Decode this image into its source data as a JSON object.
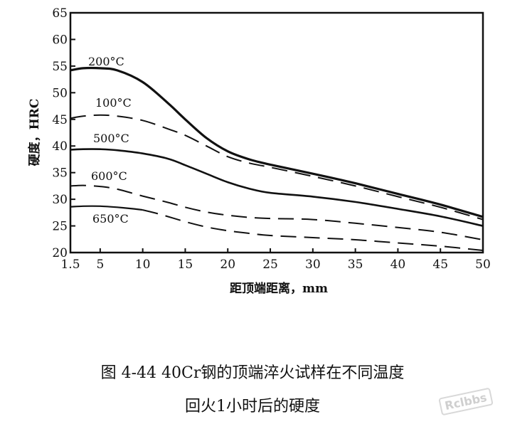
{
  "chart_data": {
    "type": "line",
    "xlabel": "距顶端距离，mm",
    "ylabel": "硬度，HRC",
    "xlim": [
      1.5,
      50
    ],
    "ylim": [
      20,
      65
    ],
    "xticks": [
      "1.5",
      "5",
      "10",
      "15",
      "20",
      "25",
      "30",
      "35",
      "40",
      "45",
      "50"
    ],
    "xtick_values": [
      1.5,
      5,
      10,
      15,
      20,
      25,
      30,
      35,
      40,
      45,
      50
    ],
    "yticks": [
      20,
      25,
      30,
      35,
      40,
      45,
      50,
      55,
      60,
      65
    ],
    "series": [
      {
        "name": "200°C",
        "style": "solid",
        "x": [
          1.5,
          3,
          5,
          7,
          10,
          13,
          15,
          17.5,
          20,
          22.5,
          25,
          30,
          35,
          40,
          45,
          50
        ],
        "y": [
          54.2,
          54.6,
          54.6,
          54.2,
          52,
          48,
          45,
          41.5,
          39,
          37.5,
          36.5,
          34.8,
          33,
          31,
          29,
          26.7
        ]
      },
      {
        "name": "100°C",
        "style": "dashed",
        "x": [
          1.5,
          3,
          5,
          7,
          10,
          13,
          15,
          17.5,
          20,
          22.5,
          25,
          30,
          35,
          40,
          45,
          50
        ],
        "y": [
          45.2,
          45.6,
          45.8,
          45.6,
          44.8,
          43.2,
          42,
          40,
          38,
          36.8,
          36,
          34.3,
          32.5,
          30.5,
          28.5,
          26.2
        ]
      },
      {
        "name": "500°C",
        "style": "solid",
        "x": [
          1.5,
          3,
          5,
          7,
          10,
          13,
          15,
          17.5,
          20,
          22.5,
          25,
          30,
          35,
          40,
          45,
          50
        ],
        "y": [
          39.3,
          39.4,
          39.4,
          39.2,
          38.6,
          37.6,
          36.4,
          34.8,
          33.2,
          32,
          31.2,
          30.5,
          29.5,
          28.2,
          26.8,
          25
        ]
      },
      {
        "name": "600°C",
        "style": "dashed",
        "x": [
          1.5,
          3,
          5,
          7,
          10,
          13,
          15,
          17.5,
          20,
          22.5,
          25,
          30,
          35,
          40,
          45,
          50
        ],
        "y": [
          32.5,
          32.6,
          32.4,
          31.9,
          30.6,
          29.4,
          28.5,
          27.6,
          27,
          26.6,
          26.4,
          26.2,
          25.5,
          24.7,
          23.8,
          22.4
        ]
      },
      {
        "name": "650°C",
        "style": "solid+dashed",
        "x": [
          1.5,
          3,
          5,
          7,
          9,
          10,
          12,
          15,
          17.5,
          20,
          22.5,
          25,
          30,
          35,
          40,
          45,
          50
        ],
        "y": [
          28.6,
          28.7,
          28.7,
          28.5,
          28.2,
          28.0,
          27.2,
          25.8,
          24.8,
          24.1,
          23.6,
          23.2,
          22.8,
          22.4,
          21.8,
          21.2,
          20.4
        ]
      }
    ]
  },
  "caption": {
    "line1": "图  4-44    40Cr钢的顶端淬火试样在不同温度",
    "line2": "回火1小时后的硬度"
  },
  "watermark": "Rclbbs"
}
